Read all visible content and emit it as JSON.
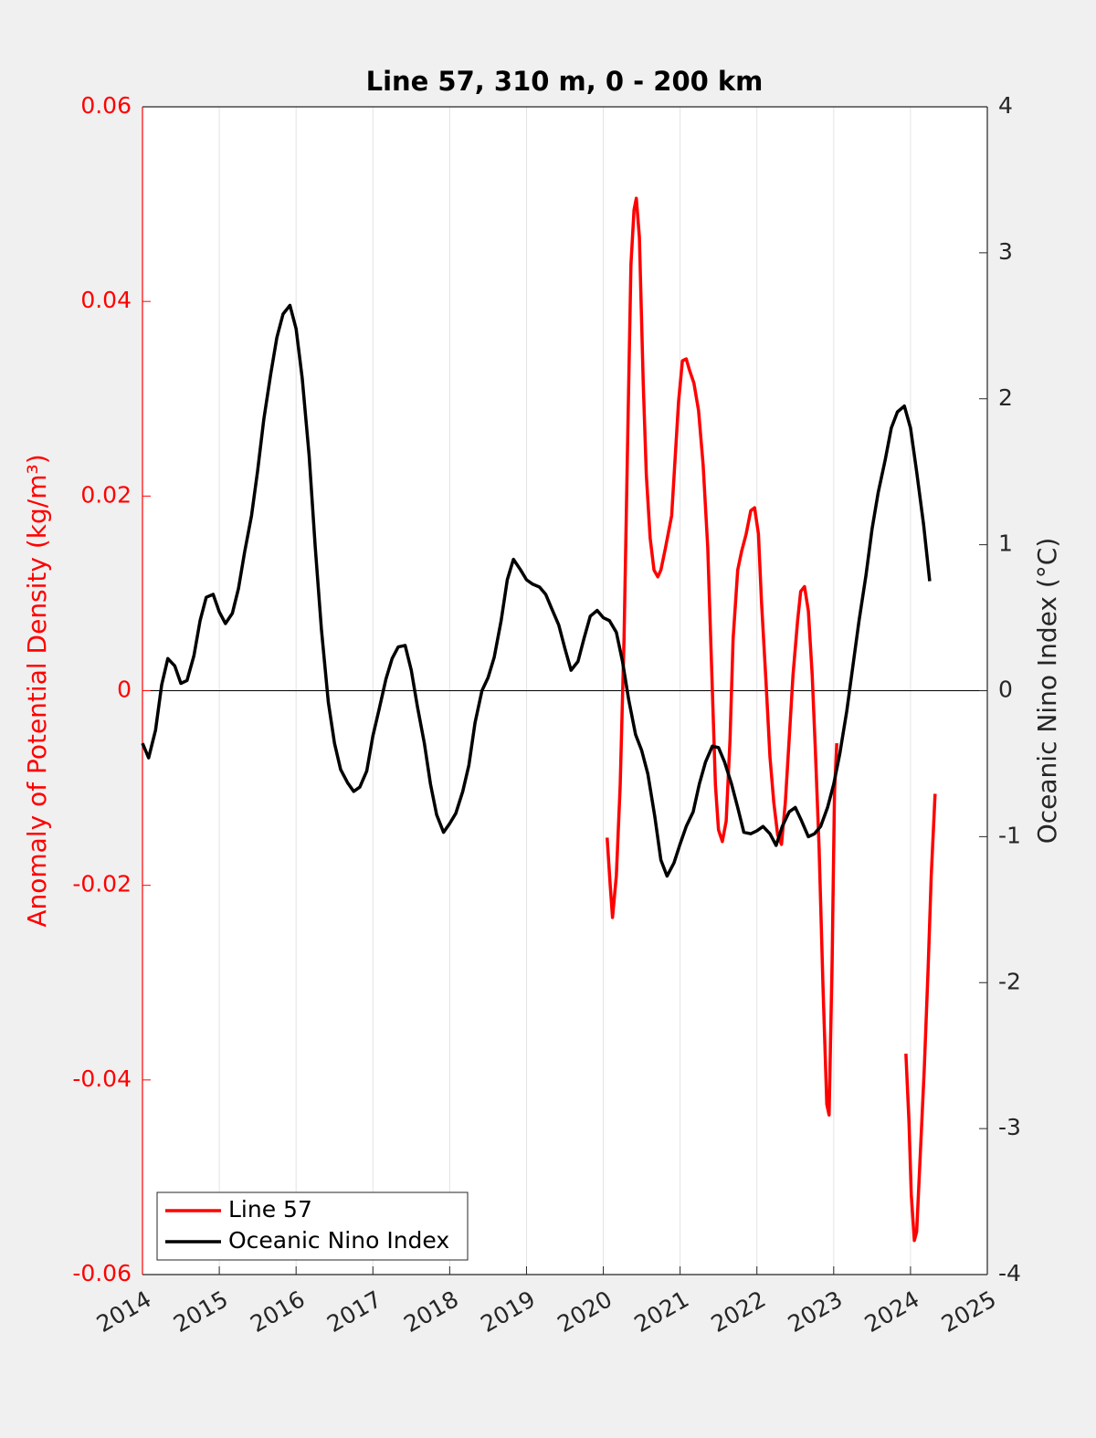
{
  "chart_data": {
    "type": "line",
    "title": "Line 57, 310 m, 0 - 200 km",
    "ylabel": "Anomaly of Potential Density (kg/m³)",
    "y2label": "Oceanic Nino Index (°C)",
    "y_axis_color": "#ff0000",
    "xlim": [
      2014,
      2025
    ],
    "xticks": [
      2014,
      2015,
      2016,
      2017,
      2018,
      2019,
      2020,
      2021,
      2022,
      2023,
      2024,
      2025
    ],
    "ylim": [
      -0.06,
      0.06
    ],
    "yticks": [
      -0.06,
      -0.04,
      -0.02,
      0,
      0.02,
      0.04,
      0.06
    ],
    "y2lim": [
      -4,
      4
    ],
    "y2ticks": [
      -4,
      -3,
      -2,
      -1,
      0,
      1,
      2,
      3,
      4
    ],
    "xgrid": true,
    "zero_line": true,
    "legend": "lower left",
    "series": [
      {
        "name": "Line 57",
        "color": "#ff0000",
        "x": [
          2020.05,
          2020.09,
          2020.12,
          2020.17,
          2020.22,
          2020.27,
          2020.32,
          2020.36,
          2020.4,
          2020.43,
          2020.47,
          2020.52,
          2020.56,
          2020.61,
          2020.66,
          2020.71,
          2020.75,
          2020.81,
          2020.89,
          2020.93,
          2020.98,
          2021.03,
          2021.08,
          2021.12,
          2021.18,
          2021.24,
          2021.3,
          2021.36,
          2021.41,
          2021.46,
          2021.5,
          2021.55,
          2021.6,
          2021.65,
          2021.69,
          2021.75,
          2021.8,
          2021.86,
          2021.92,
          2021.97,
          2022.02,
          2022.06,
          2022.12,
          2022.17,
          2022.22,
          2022.27,
          2022.32,
          2022.37,
          2022.42,
          2022.47,
          2022.53,
          2022.57,
          2022.62,
          2022.67,
          2022.72,
          2022.76,
          2022.81,
          2022.86,
          2022.91,
          2022.94,
          2022.98,
          2023.01,
          2023.04,
          2023.5,
          2023.94,
          2023.98,
          2024.01,
          2024.05,
          2024.08,
          2024.13,
          2024.18,
          2024.23,
          2024.27,
          2024.32
        ],
        "values": [
          -0.0151,
          -0.02,
          -0.0233,
          -0.019,
          -0.0097,
          0.0053,
          0.0269,
          0.0438,
          0.0494,
          0.0506,
          0.0466,
          0.0316,
          0.0222,
          0.0157,
          0.0124,
          0.0117,
          0.0124,
          0.0147,
          0.018,
          0.0232,
          0.0297,
          0.0339,
          0.0341,
          0.033,
          0.0316,
          0.0288,
          0.0232,
          0.0147,
          0.0025,
          -0.0097,
          -0.0143,
          -0.0155,
          -0.0134,
          -0.005,
          0.0053,
          0.0124,
          0.0143,
          0.0161,
          0.0185,
          0.0188,
          0.0161,
          0.0091,
          0.0007,
          -0.0068,
          -0.0115,
          -0.0148,
          -0.0158,
          -0.0115,
          -0.005,
          0.0016,
          0.0072,
          0.0102,
          0.0107,
          0.0082,
          0.0016,
          -0.0059,
          -0.0162,
          -0.0303,
          -0.0425,
          -0.0436,
          -0.0275,
          -0.0106,
          -0.0054,
          null,
          -0.0373,
          -0.0443,
          -0.0518,
          -0.0565,
          -0.0556,
          -0.0472,
          -0.0387,
          -0.0284,
          -0.019,
          -0.0106
        ]
      },
      {
        "name": "Oceanic Nino Index",
        "color": "#000000",
        "axis": "y2",
        "x": [
          2014.0,
          2014.08,
          2014.17,
          2014.25,
          2014.33,
          2014.42,
          2014.5,
          2014.58,
          2014.67,
          2014.75,
          2014.83,
          2014.92,
          2015.0,
          2015.08,
          2015.17,
          2015.25,
          2015.33,
          2015.42,
          2015.5,
          2015.58,
          2015.67,
          2015.75,
          2015.83,
          2015.92,
          2016.0,
          2016.08,
          2016.17,
          2016.25,
          2016.33,
          2016.42,
          2016.5,
          2016.58,
          2016.67,
          2016.75,
          2016.83,
          2016.92,
          2017.0,
          2017.08,
          2017.17,
          2017.25,
          2017.33,
          2017.42,
          2017.5,
          2017.58,
          2017.67,
          2017.75,
          2017.83,
          2017.92,
          2018.0,
          2018.08,
          2018.17,
          2018.25,
          2018.33,
          2018.42,
          2018.5,
          2018.58,
          2018.67,
          2018.75,
          2018.83,
          2018.92,
          2019.0,
          2019.08,
          2019.17,
          2019.25,
          2019.33,
          2019.42,
          2019.5,
          2019.58,
          2019.67,
          2019.75,
          2019.83,
          2019.92,
          2020.0,
          2020.08,
          2020.17,
          2020.25,
          2020.33,
          2020.42,
          2020.5,
          2020.58,
          2020.67,
          2020.75,
          2020.83,
          2020.92,
          2021.0,
          2021.08,
          2021.17,
          2021.25,
          2021.33,
          2021.42,
          2021.5,
          2021.58,
          2021.67,
          2021.75,
          2021.83,
          2021.92,
          2022.0,
          2022.08,
          2022.17,
          2022.25,
          2022.33,
          2022.42,
          2022.5,
          2022.58,
          2022.67,
          2022.75,
          2022.83,
          2022.92,
          2023.0,
          2023.08,
          2023.17,
          2023.25,
          2023.33,
          2023.42,
          2023.5,
          2023.58,
          2023.67,
          2023.75,
          2023.83,
          2023.92,
          2024.0,
          2024.08,
          2024.17,
          2024.25
        ],
        "values": [
          -0.36,
          -0.46,
          -0.27,
          0.04,
          0.22,
          0.17,
          0.05,
          0.07,
          0.24,
          0.48,
          0.64,
          0.66,
          0.54,
          0.46,
          0.53,
          0.7,
          0.95,
          1.2,
          1.51,
          1.86,
          2.17,
          2.42,
          2.58,
          2.64,
          2.48,
          2.14,
          1.61,
          0.98,
          0.42,
          -0.08,
          -0.36,
          -0.54,
          -0.63,
          -0.69,
          -0.66,
          -0.55,
          -0.31,
          -0.13,
          0.08,
          0.22,
          0.3,
          0.31,
          0.14,
          -0.11,
          -0.36,
          -0.64,
          -0.85,
          -0.97,
          -0.91,
          -0.84,
          -0.69,
          -0.51,
          -0.22,
          0.0,
          0.09,
          0.23,
          0.48,
          0.76,
          0.9,
          0.83,
          0.76,
          0.73,
          0.71,
          0.66,
          0.56,
          0.45,
          0.29,
          0.14,
          0.2,
          0.36,
          0.51,
          0.55,
          0.5,
          0.48,
          0.4,
          0.2,
          -0.06,
          -0.3,
          -0.41,
          -0.57,
          -0.86,
          -1.16,
          -1.27,
          -1.18,
          -1.05,
          -0.93,
          -0.83,
          -0.64,
          -0.49,
          -0.38,
          -0.39,
          -0.49,
          -0.64,
          -0.8,
          -0.97,
          -0.98,
          -0.96,
          -0.93,
          -0.98,
          -1.06,
          -0.93,
          -0.83,
          -0.8,
          -0.89,
          -1.0,
          -0.98,
          -0.93,
          -0.8,
          -0.64,
          -0.43,
          -0.14,
          0.17,
          0.48,
          0.79,
          1.11,
          1.36,
          1.58,
          1.8,
          1.91,
          1.95,
          1.8,
          1.5,
          1.14,
          0.75
        ]
      }
    ]
  }
}
